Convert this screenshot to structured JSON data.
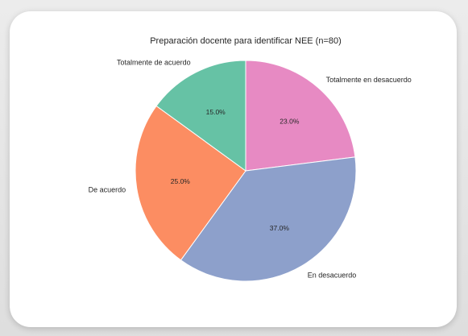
{
  "chart_data": {
    "type": "pie",
    "title": "Preparación docente para identificar NEE (n=80)",
    "slices": [
      {
        "label": "Totalmente en desacuerdo",
        "value": 23.0,
        "display": "23.0%",
        "color": "#e78ac3"
      },
      {
        "label": "En desacuerdo",
        "value": 37.0,
        "display": "37.0%",
        "color": "#8da0cb"
      },
      {
        "label": "De acuerdo",
        "value": 25.0,
        "display": "25.0%",
        "color": "#fc8d62"
      },
      {
        "label": "Totalmente de acuerdo",
        "value": 15.0,
        "display": "15.0%",
        "color": "#66c2a5"
      }
    ],
    "start_angle_deg": 90,
    "direction": "clockwise",
    "legend": "none"
  }
}
